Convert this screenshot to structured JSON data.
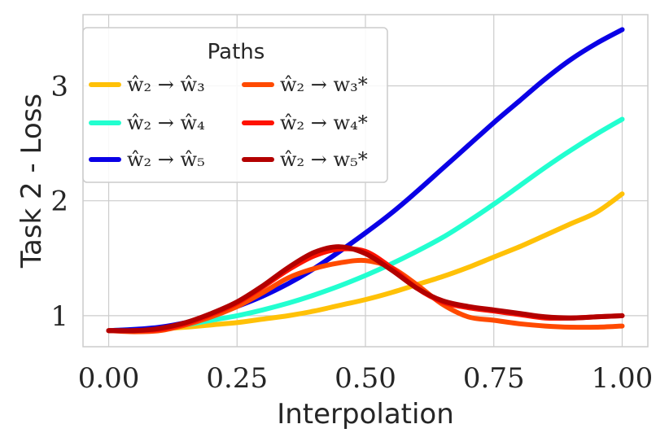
{
  "chart_data": {
    "type": "line",
    "title": "",
    "xlabel": "Interpolation",
    "ylabel": "Task 2 - Loss",
    "xlim": [
      -0.05,
      1.05
    ],
    "ylim": [
      0.73,
      3.62
    ],
    "xticks": [
      0.0,
      0.25,
      0.5,
      0.75,
      1.0
    ],
    "xtick_labels": [
      "0.00",
      "0.25",
      "0.50",
      "0.75",
      "1.00"
    ],
    "yticks": [
      1,
      2,
      3
    ],
    "ytick_labels": [
      "1",
      "2",
      "3"
    ],
    "grid": true,
    "legend": {
      "title": "Paths",
      "placement": "top-left",
      "columns": 2
    },
    "series": [
      {
        "name": "ŵ₂ → ŵ₃",
        "color": "#ffc107",
        "x": [
          0,
          0.05,
          0.1,
          0.15,
          0.2,
          0.25,
          0.3,
          0.35,
          0.4,
          0.45,
          0.5,
          0.55,
          0.6,
          0.65,
          0.7,
          0.75,
          0.8,
          0.85,
          0.9,
          0.95,
          1.0
        ],
        "y": [
          0.87,
          0.875,
          0.885,
          0.9,
          0.92,
          0.94,
          0.97,
          1.0,
          1.04,
          1.09,
          1.14,
          1.2,
          1.27,
          1.34,
          1.42,
          1.51,
          1.6,
          1.7,
          1.8,
          1.9,
          2.06
        ]
      },
      {
        "name": "ŵ₂ → ŵ₄",
        "color": "#22ffd0",
        "x": [
          0,
          0.05,
          0.1,
          0.15,
          0.2,
          0.25,
          0.3,
          0.35,
          0.4,
          0.45,
          0.5,
          0.55,
          0.6,
          0.65,
          0.7,
          0.75,
          0.8,
          0.85,
          0.9,
          0.95,
          1.0
        ],
        "y": [
          0.87,
          0.88,
          0.89,
          0.92,
          0.96,
          1.0,
          1.05,
          1.11,
          1.18,
          1.26,
          1.35,
          1.45,
          1.56,
          1.68,
          1.82,
          1.97,
          2.13,
          2.29,
          2.44,
          2.58,
          2.71
        ]
      },
      {
        "name": "ŵ₂ → ŵ₅",
        "color": "#0a00e6",
        "x": [
          0,
          0.05,
          0.1,
          0.15,
          0.2,
          0.25,
          0.3,
          0.35,
          0.4,
          0.45,
          0.5,
          0.55,
          0.6,
          0.65,
          0.7,
          0.75,
          0.8,
          0.85,
          0.9,
          0.95,
          1.0
        ],
        "y": [
          0.87,
          0.88,
          0.9,
          0.94,
          1.0,
          1.08,
          1.17,
          1.28,
          1.41,
          1.56,
          1.72,
          1.89,
          2.08,
          2.28,
          2.48,
          2.68,
          2.87,
          3.06,
          3.23,
          3.37,
          3.49
        ]
      },
      {
        "name": "ŵ₂ → w₃*",
        "color": "#ff4a00",
        "x": [
          0,
          0.05,
          0.1,
          0.15,
          0.2,
          0.25,
          0.3,
          0.35,
          0.4,
          0.45,
          0.5,
          0.55,
          0.6,
          0.65,
          0.7,
          0.75,
          0.8,
          0.85,
          0.9,
          0.95,
          1.0
        ],
        "y": [
          0.87,
          0.86,
          0.87,
          0.92,
          0.99,
          1.08,
          1.2,
          1.33,
          1.41,
          1.46,
          1.48,
          1.42,
          1.27,
          1.1,
          0.99,
          0.96,
          0.93,
          0.91,
          0.9,
          0.9,
          0.91
        ]
      },
      {
        "name": "ŵ₂ → w₄*",
        "color": "#ff1200",
        "x": [
          0,
          0.05,
          0.1,
          0.15,
          0.2,
          0.25,
          0.3,
          0.35,
          0.4,
          0.45,
          0.5,
          0.55,
          0.6,
          0.65,
          0.7,
          0.75,
          0.8,
          0.85,
          0.9,
          0.95,
          1.0
        ],
        "y": [
          0.87,
          0.87,
          0.88,
          0.93,
          1.01,
          1.11,
          1.25,
          1.4,
          1.52,
          1.58,
          1.56,
          1.42,
          1.24,
          1.12,
          1.07,
          1.04,
          1.01,
          0.98,
          0.98,
          0.99,
          1.0
        ]
      },
      {
        "name": "ŵ₂ → w₅*",
        "color": "#b30000",
        "x": [
          0,
          0.05,
          0.1,
          0.15,
          0.2,
          0.25,
          0.3,
          0.35,
          0.4,
          0.45,
          0.5,
          0.55,
          0.6,
          0.65,
          0.7,
          0.75,
          0.8,
          0.85,
          0.9,
          0.95,
          1.0
        ],
        "y": [
          0.87,
          0.87,
          0.89,
          0.94,
          1.02,
          1.12,
          1.26,
          1.42,
          1.55,
          1.6,
          1.54,
          1.4,
          1.24,
          1.13,
          1.08,
          1.05,
          1.02,
          0.99,
          0.98,
          0.99,
          1.0
        ]
      }
    ]
  }
}
